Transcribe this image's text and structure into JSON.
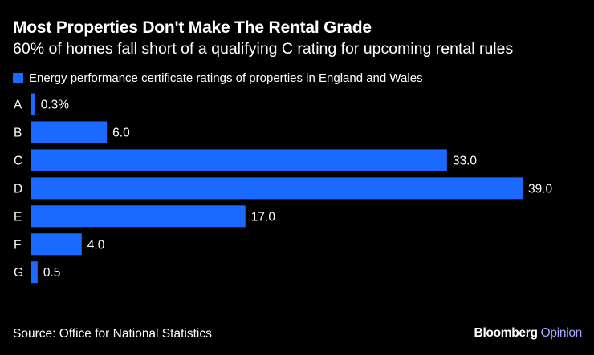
{
  "header": {
    "title": "Most Properties Don't Make The Rental Grade",
    "subtitle": "60% of homes fall short of a qualifying C rating for upcoming rental rules"
  },
  "legend": {
    "label": "Energy performance certificate ratings of properties in England and Wales"
  },
  "colors": {
    "bar": "#1a6aff",
    "background": "#000000",
    "text": "#ffffff"
  },
  "chart_data": {
    "type": "bar",
    "orientation": "horizontal",
    "title": "Most Properties Don't Make The Rental Grade",
    "subtitle": "60% of homes fall short of a qualifying C rating for upcoming rental rules",
    "xlabel": "",
    "ylabel": "",
    "categories": [
      "A",
      "B",
      "C",
      "D",
      "E",
      "F",
      "G"
    ],
    "series": [
      {
        "name": "Energy performance certificate ratings of properties in England and Wales",
        "values": [
          0.3,
          6.0,
          33.0,
          39.0,
          17.0,
          4.0,
          0.5
        ]
      }
    ],
    "value_labels": [
      "0.3%",
      "6.0",
      "33.0",
      "39.0",
      "17.0",
      "4.0",
      "0.5"
    ],
    "xlim": [
      0,
      39
    ],
    "grid": false,
    "legend": "top-left"
  },
  "footer": {
    "source": "Source: Office for National Statistics",
    "brand_bold": "Bloomberg",
    "brand_light": "Opinion"
  }
}
